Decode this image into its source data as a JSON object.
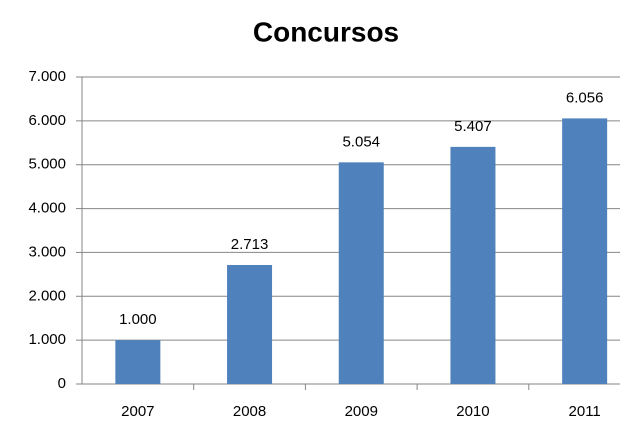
{
  "chart_data": {
    "type": "bar",
    "title": "Concursos",
    "categories": [
      "2007",
      "2008",
      "2009",
      "2010",
      "2011"
    ],
    "values": [
      1000,
      2713,
      5054,
      5407,
      6056
    ],
    "value_labels": [
      "1.000",
      "2.713",
      "5.054",
      "5.407",
      "6.056"
    ],
    "color": "#4f81bd",
    "ylim": [
      0,
      7000
    ],
    "yticks": [
      0,
      {
        "value": 1000,
        "label": "1.000"
      },
      {
        "value": 2000,
        "label": "2.000"
      },
      {
        "value": 3000,
        "label": "3.000"
      },
      {
        "value": 4000,
        "label": "4.000"
      },
      {
        "value": 5000,
        "label": "5.000"
      },
      {
        "value": 6000,
        "label": "6.000"
      },
      {
        "value": 7000,
        "label": "7.000"
      }
    ],
    "grid": true
  }
}
